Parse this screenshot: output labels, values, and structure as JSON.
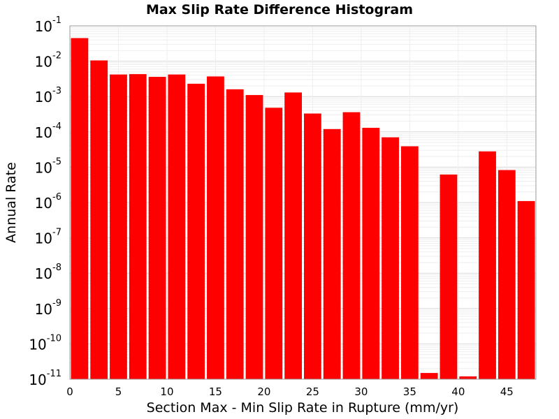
{
  "chart_data": {
    "type": "bar",
    "title": "Max Slip Rate Difference Histogram",
    "xlabel": "Section Max - Min Slip Rate in Rupture (mm/yr)",
    "ylabel": "Annual Rate",
    "yscale": "log",
    "ylim": [
      1e-11,
      0.1
    ],
    "xlim": [
      0,
      48
    ],
    "bin_width": 2,
    "x_ticks": [
      0,
      5,
      10,
      15,
      20,
      25,
      30,
      35,
      40,
      45
    ],
    "y_ticks": [
      {
        "base": "10",
        "exp": "-1",
        "value": 0.1
      },
      {
        "base": "10",
        "exp": "-2",
        "value": 0.01
      },
      {
        "base": "10",
        "exp": "-3",
        "value": 0.001
      },
      {
        "base": "10",
        "exp": "-4",
        "value": 0.0001
      },
      {
        "base": "10",
        "exp": "-5",
        "value": 1e-05
      },
      {
        "base": "10",
        "exp": "-6",
        "value": 1e-06
      },
      {
        "base": "10",
        "exp": "-7",
        "value": 1e-07
      },
      {
        "base": "10",
        "exp": "-8",
        "value": 1e-08
      },
      {
        "base": "10",
        "exp": "-9",
        "value": 1e-09
      },
      {
        "base": "10",
        "exp": "-10",
        "value": 1e-10
      },
      {
        "base": "10",
        "exp": "-11",
        "value": 1e-11
      }
    ],
    "bin_starts": [
      0,
      2,
      4,
      6,
      8,
      10,
      12,
      14,
      16,
      18,
      20,
      22,
      24,
      26,
      28,
      30,
      32,
      34,
      36,
      38,
      40,
      42,
      44,
      46
    ],
    "values": [
      0.045,
      0.0105,
      0.0042,
      0.0043,
      0.0036,
      0.0042,
      0.0023,
      0.0037,
      0.0016,
      0.0011,
      0.00048,
      0.0013,
      0.00033,
      0.00012,
      0.00036,
      0.00013,
      7e-05,
      3.9e-05,
      1.5e-11,
      6.2e-06,
      1.2e-11,
      2.8e-05,
      8.3e-06,
      1.1e-06
    ],
    "bar_color": "#ff0000",
    "grid": true,
    "legend": "none"
  }
}
